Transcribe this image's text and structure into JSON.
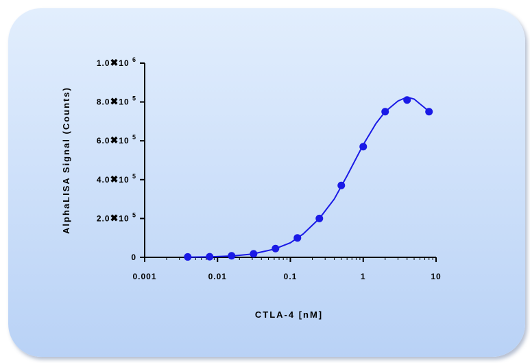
{
  "chart_data": {
    "type": "scatter",
    "xlabel": "CTLA-4 [nM]",
    "ylabel": "AlphaLISA Signal (Counts)",
    "x_scale": "log",
    "xlim": [
      0.001,
      10
    ],
    "ylim": [
      0,
      1000000
    ],
    "x_ticks": [
      {
        "value": 0.001,
        "label": "0.001"
      },
      {
        "value": 0.01,
        "label": "0.01"
      },
      {
        "value": 0.1,
        "label": "0.1"
      },
      {
        "value": 1,
        "label": "1"
      },
      {
        "value": 10,
        "label": "10"
      }
    ],
    "y_ticks": [
      {
        "value": 0,
        "mant": "0",
        "exp": ""
      },
      {
        "value": 200000,
        "mant": "2.0",
        "exp": "5"
      },
      {
        "value": 400000,
        "mant": "4.0",
        "exp": "5"
      },
      {
        "value": 600000,
        "mant": "6.0",
        "exp": "5"
      },
      {
        "value": 800000,
        "mant": "8.0",
        "exp": "5"
      },
      {
        "value": 1000000,
        "mant": "1.0",
        "exp": "6"
      }
    ],
    "y_tick_times": "✖",
    "y_tick_base": "10",
    "series": [
      {
        "color": "#1a1ae6",
        "points": [
          {
            "x": 0.0039,
            "y": 2000
          },
          {
            "x": 0.0078,
            "y": 3000
          },
          {
            "x": 0.0156,
            "y": 8000
          },
          {
            "x": 0.03125,
            "y": 18000
          },
          {
            "x": 0.0625,
            "y": 45000
          },
          {
            "x": 0.125,
            "y": 100000
          },
          {
            "x": 0.25,
            "y": 200000
          },
          {
            "x": 0.5,
            "y": 370000
          },
          {
            "x": 1,
            "y": 570000
          },
          {
            "x": 2,
            "y": 750000
          },
          {
            "x": 4,
            "y": 810000
          },
          {
            "x": 8,
            "y": 750000
          }
        ],
        "fit_curve": [
          {
            "x": 0.0039,
            "y": 1000
          },
          {
            "x": 0.008,
            "y": 2500
          },
          {
            "x": 0.016,
            "y": 7000
          },
          {
            "x": 0.03,
            "y": 17000
          },
          {
            "x": 0.06,
            "y": 42000
          },
          {
            "x": 0.1,
            "y": 75000
          },
          {
            "x": 0.15,
            "y": 120000
          },
          {
            "x": 0.25,
            "y": 200000
          },
          {
            "x": 0.4,
            "y": 300000
          },
          {
            "x": 0.6,
            "y": 420000
          },
          {
            "x": 1,
            "y": 580000
          },
          {
            "x": 1.5,
            "y": 690000
          },
          {
            "x": 2,
            "y": 750000
          },
          {
            "x": 3,
            "y": 805000
          },
          {
            "x": 4,
            "y": 825000
          },
          {
            "x": 5,
            "y": 815000
          },
          {
            "x": 6,
            "y": 790000
          },
          {
            "x": 7,
            "y": 770000
          },
          {
            "x": 8,
            "y": 750000
          }
        ]
      }
    ]
  }
}
